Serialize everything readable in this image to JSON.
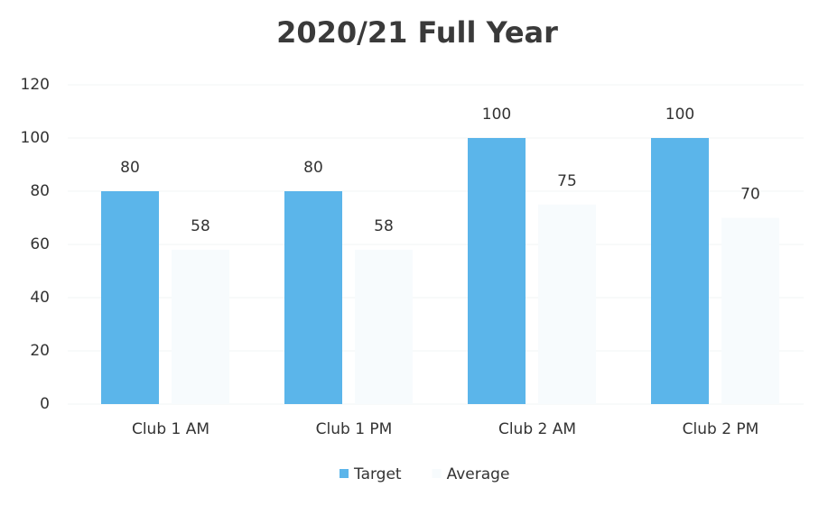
{
  "chart_data": {
    "type": "bar",
    "title": "2020/21 Full Year",
    "categories": [
      "Club 1 AM",
      "Club 1 PM",
      "Club 2 AM",
      "Club 2 PM"
    ],
    "series": [
      {
        "name": "Target",
        "color": "#5bb5ea",
        "values": [
          80,
          80,
          100,
          100
        ]
      },
      {
        "name": "Average",
        "color": "#f7fbfd",
        "values": [
          58,
          58,
          75,
          70
        ]
      }
    ],
    "ylim": [
      0,
      120
    ],
    "yticks": [
      0,
      20,
      40,
      60,
      80,
      100,
      120
    ],
    "grid": true,
    "legend": "bottom"
  }
}
